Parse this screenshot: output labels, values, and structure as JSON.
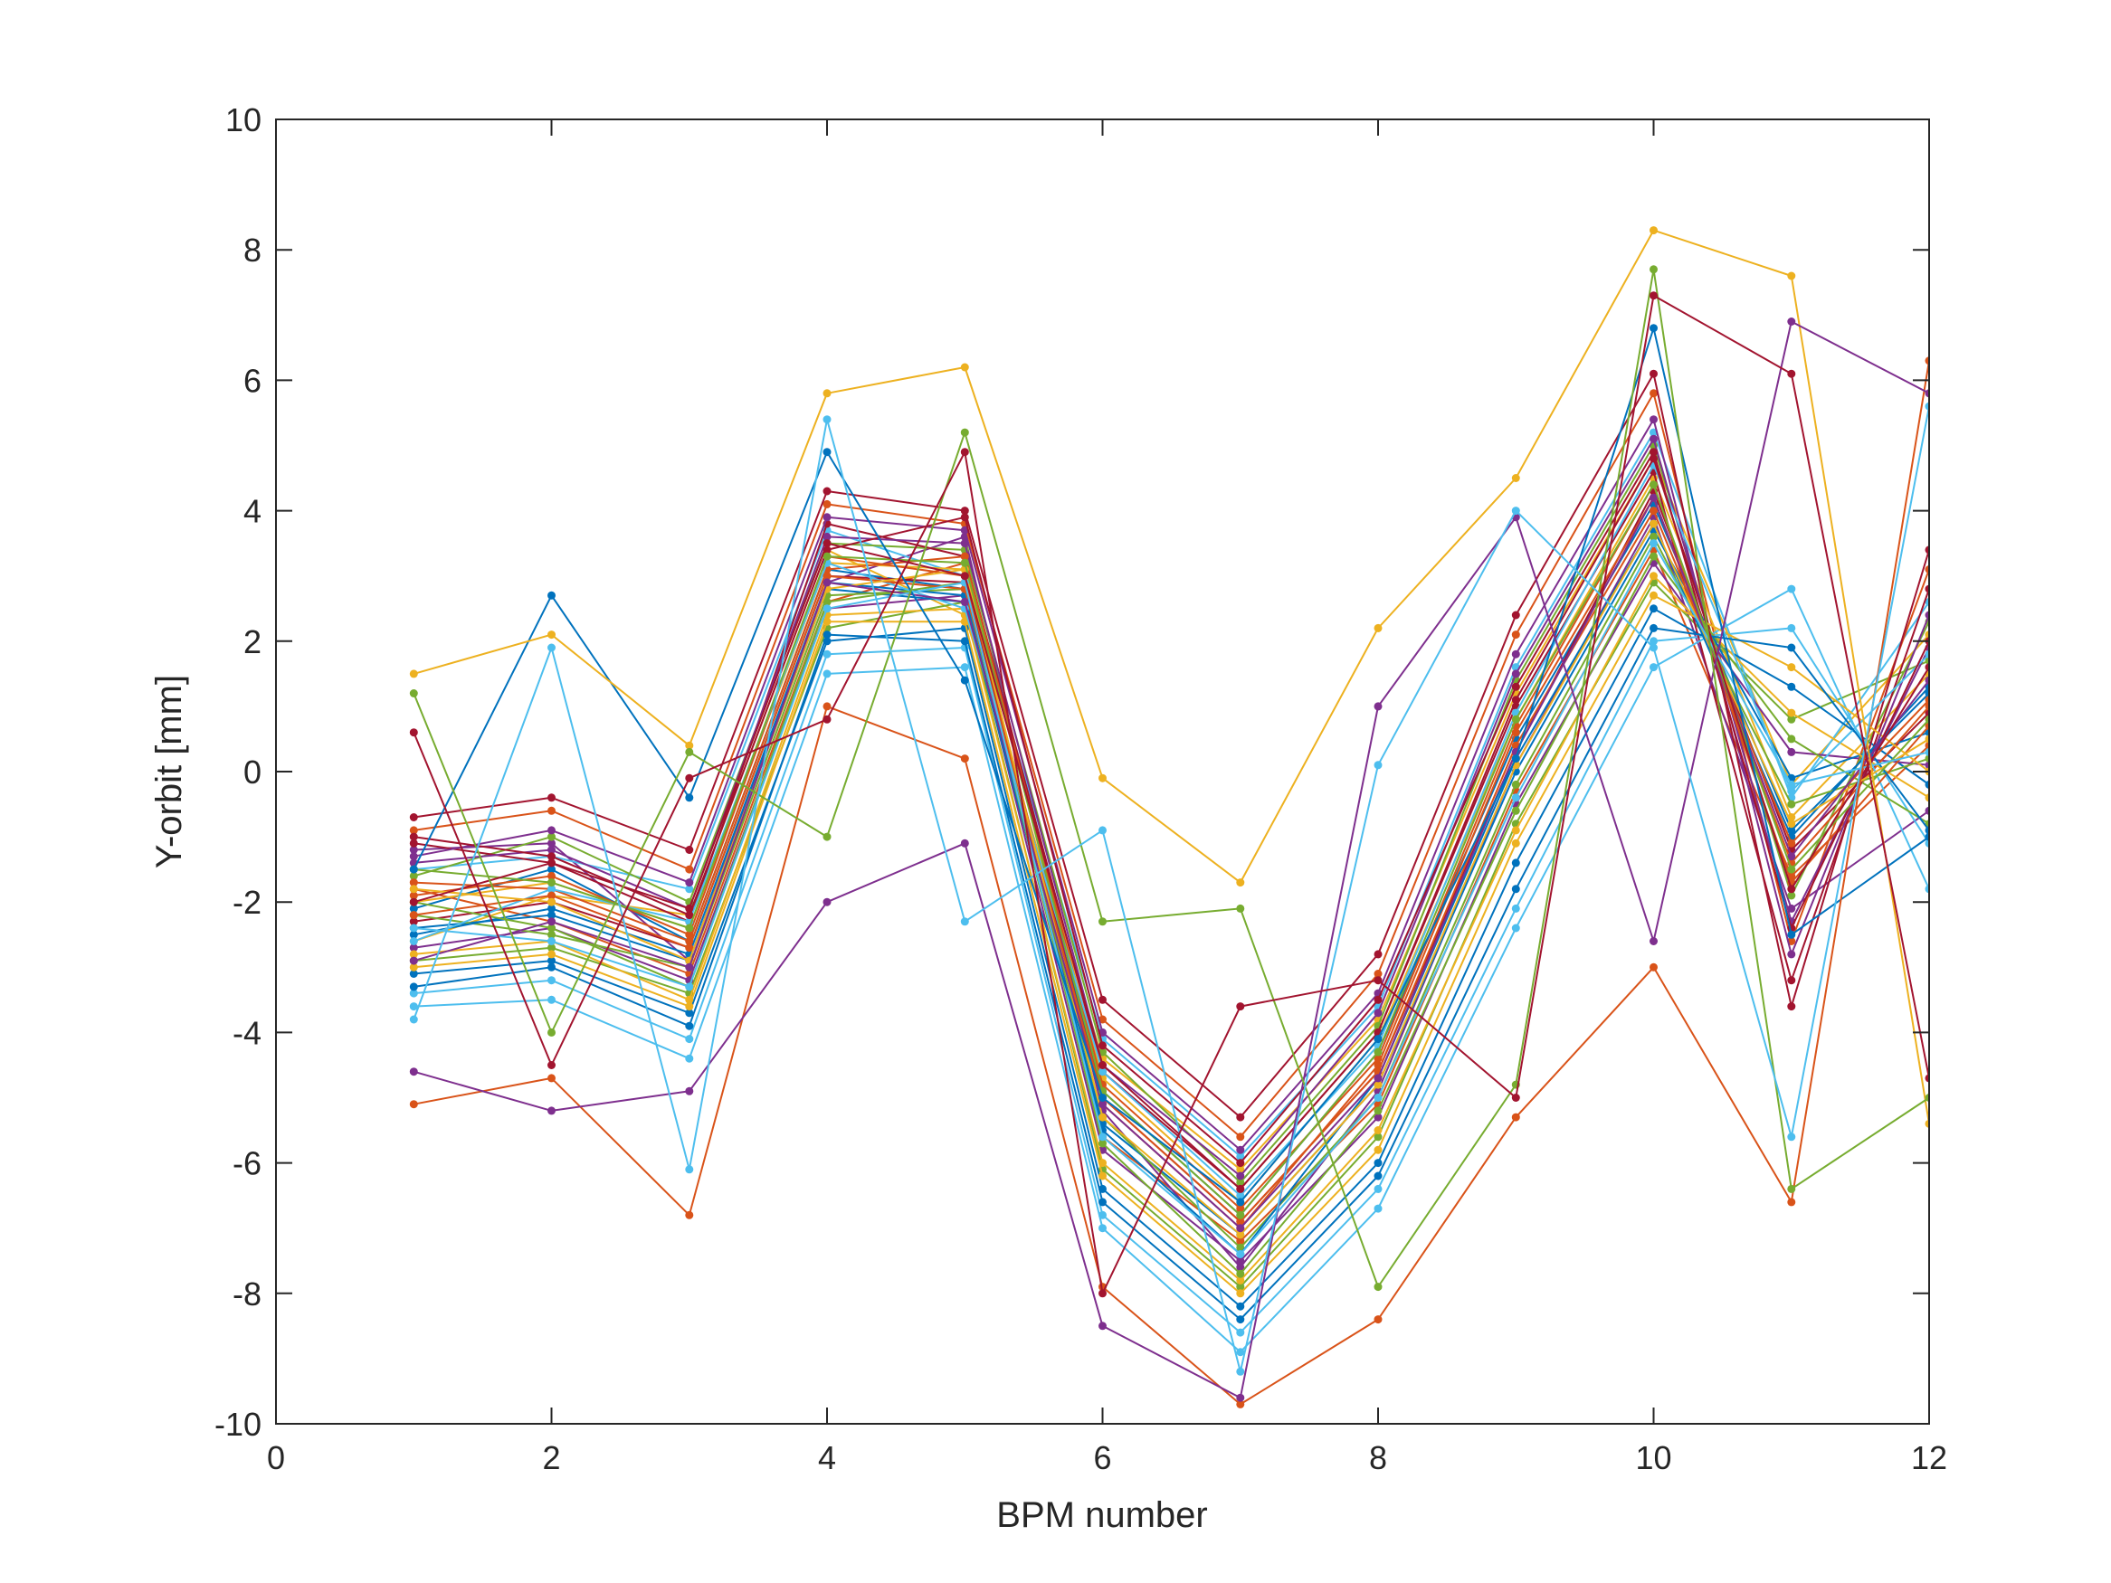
{
  "chart_data": {
    "type": "line",
    "title": "",
    "xlabel": "BPM number",
    "ylabel": "Y-orbit [mm]",
    "xlim": [
      0,
      12
    ],
    "ylim": [
      -10,
      10
    ],
    "xticks": [
      0,
      2,
      4,
      6,
      8,
      10,
      12
    ],
    "yticks": [
      -10,
      -8,
      -6,
      -4,
      -2,
      0,
      2,
      4,
      6,
      8,
      10
    ],
    "xtick_labels": [
      "0",
      "2",
      "4",
      "6",
      "8",
      "10",
      "12"
    ],
    "ytick_labels": [
      "-10",
      "-8",
      "-6",
      "-4",
      "-2",
      "0",
      "2",
      "4",
      "6",
      "8",
      "10"
    ],
    "grid": false,
    "legend": "none",
    "marker": "dot",
    "x": [
      1,
      2,
      3,
      4,
      5,
      6,
      7,
      8,
      9,
      10,
      11,
      12
    ],
    "palette": [
      "#0072BD",
      "#D95319",
      "#EDB120",
      "#7E2F8E",
      "#77AC30",
      "#4DBEEE",
      "#A2142F"
    ],
    "series": [
      {
        "values": [
          -2.1,
          -1.5,
          -2.6,
          3.1,
          2.8,
          -4.9,
          -6.8,
          -4.3,
          0.5,
          4.1,
          -0.9,
          1.2
        ]
      },
      {
        "values": [
          -1.8,
          -2.3,
          -3.1,
          2.6,
          3.2,
          -5.6,
          -7.2,
          -5.1,
          -0.3,
          3.4,
          -1.6,
          0.4
        ]
      },
      {
        "values": [
          -2.6,
          -1.9,
          -2.2,
          3.4,
          2.4,
          -4.4,
          -6.1,
          -3.8,
          1.2,
          4.8,
          -0.2,
          2.1
        ]
      },
      {
        "values": [
          -1.2,
          -1.1,
          -2.9,
          2.9,
          3.6,
          -5.2,
          -7.6,
          -4.9,
          0.1,
          3.9,
          -2.1,
          -0.6
        ]
      },
      {
        "values": [
          -2.9,
          -2.7,
          -3.4,
          2.2,
          2.6,
          -6.1,
          -7.9,
          -5.6,
          -0.8,
          2.9,
          0.8,
          1.7
        ]
      },
      {
        "values": [
          -1.5,
          -1.3,
          -1.8,
          3.7,
          3.0,
          -4.1,
          -5.9,
          -3.6,
          1.6,
          5.2,
          -0.4,
          2.6
        ]
      },
      {
        "values": [
          -2.3,
          -2.0,
          -2.7,
          3.0,
          2.9,
          -5.0,
          -6.9,
          -4.6,
          0.3,
          4.3,
          -1.2,
          0.9
        ]
      },
      {
        "values": [
          -3.1,
          -2.9,
          -3.7,
          2.0,
          2.2,
          -6.4,
          -8.2,
          -6.0,
          -1.4,
          2.5,
          1.3,
          -0.2
        ]
      },
      {
        "values": [
          -0.9,
          -0.6,
          -1.5,
          4.1,
          3.8,
          -3.8,
          -5.6,
          -3.1,
          2.1,
          5.8,
          -2.6,
          3.1
        ]
      },
      {
        "values": [
          -2.0,
          -1.7,
          -2.4,
          3.2,
          3.1,
          -4.7,
          -6.6,
          -4.1,
          0.8,
          4.5,
          -0.7,
          1.5
        ]
      },
      {
        "values": [
          -2.7,
          -2.4,
          -3.2,
          2.5,
          2.7,
          -5.8,
          -7.5,
          -5.3,
          -0.5,
          3.2,
          0.3,
          0.1
        ]
      },
      {
        "values": [
          -1.6,
          -1.0,
          -2.0,
          3.5,
          3.4,
          -4.3,
          -6.3,
          -3.9,
          1.4,
          5.0,
          -1.9,
          2.3
        ]
      },
      {
        "values": [
          -3.4,
          -3.2,
          -4.1,
          1.8,
          1.9,
          -6.8,
          -8.6,
          -6.4,
          -2.1,
          2.0,
          2.2,
          -1.1
        ]
      },
      {
        "values": [
          -1.1,
          -1.4,
          -2.3,
          3.8,
          3.3,
          -4.6,
          -6.4,
          -4.0,
          1.0,
          4.6,
          -3.2,
          2.8
        ]
      },
      {
        "values": [
          -2.4,
          -2.2,
          -2.9,
          2.8,
          2.6,
          -5.4,
          -7.1,
          -4.8,
          0.0,
          3.7,
          -0.1,
          0.6
        ]
      },
      {
        "values": [
          -1.9,
          -1.6,
          -2.5,
          3.3,
          3.0,
          -5.1,
          -7.0,
          -4.5,
          0.6,
          4.2,
          -1.4,
          1.0
        ]
      },
      {
        "values": [
          -2.8,
          -2.6,
          -3.5,
          2.4,
          2.5,
          -6.0,
          -7.8,
          -5.5,
          -0.9,
          3.0,
          0.9,
          -0.4
        ]
      },
      {
        "values": [
          -1.4,
          -1.2,
          -2.1,
          3.6,
          3.5,
          -4.5,
          -6.2,
          -3.7,
          1.5,
          5.1,
          -2.3,
          1.9
        ]
      },
      {
        "values": [
          -2.2,
          -2.5,
          -3.0,
          2.7,
          2.8,
          -5.3,
          -7.3,
          -5.0,
          -0.2,
          3.6,
          -0.5,
          0.2
        ]
      },
      {
        "values": [
          -3.6,
          -3.5,
          -4.4,
          1.5,
          1.6,
          -7.0,
          -8.9,
          -6.7,
          -2.4,
          1.6,
          2.8,
          -1.8
        ]
      },
      {
        "values": [
          -0.7,
          -0.4,
          -1.2,
          4.3,
          4.0,
          -3.5,
          -5.3,
          -2.8,
          2.4,
          6.1,
          -3.6,
          3.4
        ]
      },
      {
        "values": [
          -2.5,
          -2.1,
          -2.8,
          2.9,
          2.7,
          -5.5,
          -7.4,
          -4.7,
          0.2,
          3.8,
          -1.0,
          1.3
        ]
      },
      {
        "values": [
          -1.7,
          -1.8,
          -2.6,
          3.1,
          3.3,
          -4.8,
          -6.7,
          -4.4,
          0.7,
          4.4,
          -1.7,
          0.7
        ]
      },
      {
        "values": [
          -3.0,
          -2.8,
          -3.6,
          2.3,
          2.3,
          -6.2,
          -8.0,
          -5.8,
          -1.1,
          2.7,
          1.6,
          0.0
        ]
      },
      {
        "values": [
          -1.3,
          -0.9,
          -1.7,
          3.9,
          3.7,
          -4.0,
          -5.8,
          -3.4,
          1.8,
          5.4,
          -2.8,
          2.4
        ]
      },
      {
        "values": [
          -2.0,
          -2.4,
          -3.3,
          2.6,
          2.9,
          -5.7,
          -7.7,
          -5.2,
          -0.6,
          3.3,
          0.5,
          -0.8
        ]
      },
      {
        "values": [
          -2.6,
          -1.8,
          -2.3,
          3.2,
          2.5,
          -4.6,
          -6.5,
          -4.2,
          0.9,
          4.7,
          -0.3,
          1.8
        ]
      },
      {
        "values": [
          -1.0,
          -1.3,
          -2.2,
          3.4,
          3.9,
          -4.2,
          -6.0,
          -3.5,
          1.3,
          4.9,
          -2.4,
          2.0
        ]
      },
      {
        "values": [
          -3.3,
          -3.0,
          -3.9,
          2.1,
          2.0,
          -6.6,
          -8.4,
          -6.2,
          -1.8,
          2.2,
          1.9,
          -0.9
        ]
      },
      {
        "values": [
          -2.2,
          -1.9,
          -2.7,
          3.0,
          2.8,
          -5.0,
          -6.9,
          -4.6,
          0.4,
          4.0,
          -1.1,
          1.1
        ]
      },
      {
        "values": [
          -1.8,
          -2.0,
          -2.9,
          2.8,
          3.1,
          -5.3,
          -7.1,
          -4.8,
          0.1,
          3.8,
          -0.8,
          0.5
        ]
      },
      {
        "values": [
          -2.9,
          -2.3,
          -3.0,
          2.9,
          2.6,
          -5.1,
          -7.0,
          -4.7,
          0.3,
          4.2,
          -1.3,
          1.4
        ]
      },
      {
        "values": [
          -1.5,
          -1.7,
          -2.4,
          3.3,
          3.2,
          -4.9,
          -6.8,
          -4.3,
          0.8,
          4.4,
          -1.5,
          0.8
        ]
      },
      {
        "values": [
          -2.4,
          -2.6,
          -3.3,
          2.5,
          2.9,
          -5.6,
          -7.4,
          -5.0,
          -0.4,
          3.5,
          -0.2,
          0.3
        ]
      },
      {
        "values": [
          -2.0,
          -1.4,
          -2.1,
          3.5,
          3.0,
          -4.5,
          -6.4,
          -4.0,
          1.1,
          4.8,
          -1.8,
          1.6
        ]
      },
      {
        "values": [
          -1.5,
          2.7,
          -0.4,
          4.9,
          1.4,
          -5.0,
          -6.6,
          -4.1,
          0.2,
          6.8,
          -2.5,
          -1.0
        ]
      },
      {
        "values": [
          -5.1,
          -4.7,
          -6.8,
          1.0,
          0.2,
          -7.9,
          -9.7,
          -8.4,
          -5.3,
          -3.0,
          -6.6,
          6.3
        ]
      },
      {
        "values": [
          1.5,
          2.1,
          0.4,
          5.8,
          6.2,
          -0.1,
          -1.7,
          2.2,
          4.5,
          8.3,
          7.6,
          -5.4
        ]
      },
      {
        "values": [
          -4.6,
          -5.2,
          -4.9,
          -2.0,
          -1.1,
          -8.5,
          -9.6,
          1.0,
          3.9,
          -2.6,
          6.9,
          5.8
        ]
      },
      {
        "values": [
          1.2,
          -4.0,
          0.3,
          -1.0,
          5.2,
          -2.3,
          -2.1,
          -7.9,
          -4.8,
          7.7,
          -6.4,
          -5.0
        ]
      },
      {
        "values": [
          -3.8,
          1.9,
          -6.1,
          5.4,
          -2.3,
          -0.9,
          -9.2,
          0.1,
          4.0,
          1.9,
          -5.6,
          5.6
        ]
      },
      {
        "values": [
          0.6,
          -4.5,
          -0.1,
          0.8,
          4.9,
          -8.0,
          -3.6,
          -3.2,
          -5.0,
          7.3,
          6.1,
          -4.7
        ]
      }
    ]
  }
}
